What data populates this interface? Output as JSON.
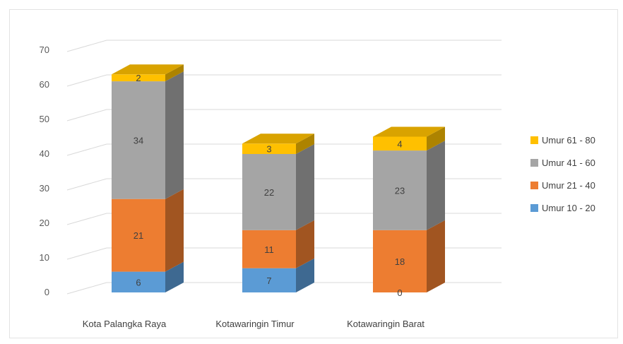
{
  "chart_data": {
    "type": "bar",
    "stacked": true,
    "three_d": true,
    "categories": [
      "Kota Palangka Raya",
      "Kotawaringin Timur",
      "Kotawaringin Barat"
    ],
    "series": [
      {
        "name": "Umur 10  - 20",
        "values": [
          6,
          7,
          0
        ],
        "color": "#5b9bd5"
      },
      {
        "name": "Umur 21  - 40",
        "values": [
          21,
          11,
          18
        ],
        "color": "#ed7d31"
      },
      {
        "name": "Umur 41  - 60",
        "values": [
          34,
          22,
          23
        ],
        "color": "#a5a5a5"
      },
      {
        "name": "Umur 61  - 80",
        "values": [
          2,
          3,
          4
        ],
        "color": "#ffc000"
      }
    ],
    "yticks": [
      "0",
      "10",
      "20",
      "30",
      "40",
      "50",
      "60",
      "70"
    ],
    "ylim": [
      0,
      70
    ],
    "grid": true,
    "legend_position": "right",
    "title": "",
    "xlabel": "",
    "ylabel": ""
  }
}
